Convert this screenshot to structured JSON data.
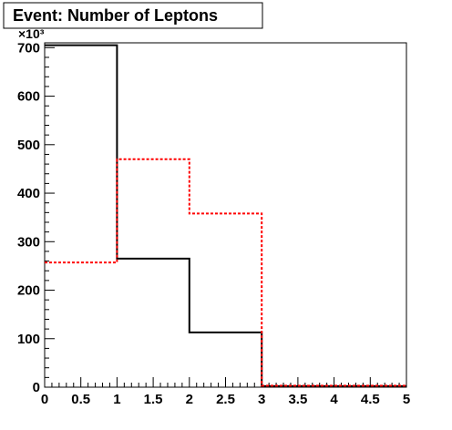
{
  "chart_data": {
    "type": "histogram",
    "title": "Event: Number of Leptons",
    "xlabel": "",
    "ylabel": "",
    "y_scale_label": "×10³",
    "xlim": [
      0,
      5
    ],
    "ylim": [
      0,
      710000
    ],
    "x_tick_labels": [
      "0",
      "0.5",
      "1",
      "1.5",
      "2",
      "2.5",
      "3",
      "3.5",
      "4",
      "4.5",
      "5"
    ],
    "y_tick_labels": [
      "0",
      "100",
      "200",
      "300",
      "400",
      "500",
      "600",
      "700"
    ],
    "bin_edges": [
      0,
      1,
      2,
      3,
      4,
      5
    ],
    "series": [
      {
        "style": "solid",
        "color": "#000000",
        "values": [
          705000,
          265000,
          113000,
          2000,
          2000
        ]
      },
      {
        "style": "dotted",
        "color": "#ff0000",
        "values": [
          257000,
          470000,
          358000,
          3000,
          3000
        ]
      }
    ],
    "grid": false
  }
}
